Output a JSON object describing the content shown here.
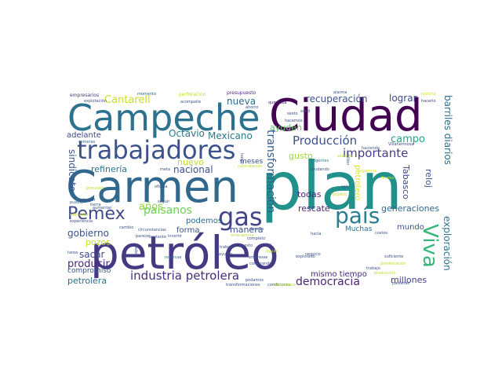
{
  "words": [
    {
      "text": "petróleo",
      "color": "#443983"
    },
    {
      "text": "plan",
      "color": "#21918c"
    },
    {
      "text": "Carmen",
      "color": "#31688e"
    },
    {
      "text": "Ciudad",
      "color": "#440154"
    },
    {
      "text": "Campeche",
      "color": "#2c728e"
    },
    {
      "text": "trabajadores",
      "color": "#3b528b"
    },
    {
      "text": "Pemex",
      "color": "#3e4a89"
    },
    {
      "text": "gas",
      "color": "#414487"
    },
    {
      "text": "país",
      "color": "#287d8e"
    },
    {
      "text": "Viva",
      "color": "#35b779"
    },
    {
      "text": "industria petrolera",
      "color": "#472d7b"
    },
    {
      "text": "paisanos",
      "color": "#6ece58"
    },
    {
      "text": "transformación",
      "color": "#365c8d"
    },
    {
      "text": "Producción",
      "color": "#3b528b"
    },
    {
      "text": "importante",
      "color": "#433e85"
    },
    {
      "text": "democracia",
      "color": "#482475"
    },
    {
      "text": "Cantarell",
      "color": "#cae11f"
    },
    {
      "text": "Octavio",
      "color": "#2a788e"
    },
    {
      "text": "Mexicano",
      "color": "#2a788e"
    },
    {
      "text": "nueva",
      "color": "#31688e"
    },
    {
      "text": "recuperación",
      "color": "#3b528b"
    },
    {
      "text": "lograr",
      "color": "#3e4a89"
    },
    {
      "text": "campo",
      "color": "#22a884"
    },
    {
      "text": "barriles diarios",
      "color": "#2e6e8e"
    },
    {
      "text": "adelante",
      "color": "#3e4989"
    },
    {
      "text": "nuevo",
      "color": "#b5de2b"
    },
    {
      "text": "nacional",
      "color": "#3b528b"
    },
    {
      "text": "refinería",
      "color": "#2c728e"
    },
    {
      "text": "sindicato",
      "color": "#3a548c"
    },
    {
      "text": "gobierno",
      "color": "#3b528b"
    },
    {
      "text": "años",
      "color": "#8fd744"
    },
    {
      "text": "pozos",
      "color": "#c2df23"
    },
    {
      "text": "sacar",
      "color": "#3e4a89"
    },
    {
      "text": "producir",
      "color": "#482878"
    },
    {
      "text": "compromiso",
      "color": "#3b528b"
    },
    {
      "text": "petrolera",
      "color": "#2c728e"
    },
    {
      "text": "forma",
      "color": "#3b528b"
    },
    {
      "text": "podemos",
      "color": "#31688e"
    },
    {
      "text": "manera",
      "color": "#3b528b"
    },
    {
      "text": "rescate",
      "color": "#482878"
    },
    {
      "text": "todas",
      "color": "#482475"
    },
    {
      "text": "generaciones",
      "color": "#31688e"
    },
    {
      "text": "mundo",
      "color": "#3b528b"
    },
    {
      "text": "exploración",
      "color": "#2c728e"
    },
    {
      "text": "millones",
      "color": "#433e85"
    },
    {
      "text": "mismo tiempo",
      "color": "#482878"
    },
    {
      "text": "Tabasco",
      "color": "#3e4989"
    },
    {
      "text": "reloj",
      "color": "#3b528b"
    },
    {
      "text": "ayuden",
      "color": "#5ec962"
    },
    {
      "text": "gusto",
      "color": "#9fda3a"
    },
    {
      "text": "petrolero",
      "color": "#dde318"
    },
    {
      "text": "meses",
      "color": "#3b528b"
    },
    {
      "text": "Muchas",
      "color": "#2e6e8e"
    },
    {
      "text": "empresarios",
      "color": "#443983"
    },
    {
      "text": "momento",
      "color": "#31688e"
    },
    {
      "text": "perforación",
      "color": "#bddf26"
    },
    {
      "text": "presupuesto",
      "color": "#472c7a"
    },
    {
      "text": "alarma",
      "color": "#3b528b"
    },
    {
      "text": "historia",
      "color": "#d8e219"
    },
    {
      "text": "hacerlo",
      "color": "#433e85"
    },
    {
      "text": "explotación",
      "color": "#3b528b"
    },
    {
      "text": "acompañe",
      "color": "#3b528b"
    },
    {
      "text": "quemaba",
      "color": "#482475"
    },
    {
      "text": "sexenio",
      "color": "#b8de29"
    },
    {
      "text": "Villahermosa",
      "color": "#3b528b"
    },
    {
      "text": "someras",
      "color": "#31688e"
    },
    {
      "text": "haciendo",
      "color": "#3b528b"
    },
    {
      "text": "finales",
      "color": "#bddf26"
    },
    {
      "text": "logramos",
      "color": "#dde318"
    },
    {
      "text": "aumentar",
      "color": "#3b528b"
    },
    {
      "text": "seguir",
      "color": "#3b528b"
    },
    {
      "text": "oficina",
      "color": "#3b528b"
    },
    {
      "text": "proceder",
      "color": "#bddf26"
    },
    {
      "text": "entregar",
      "color": "#3b528b"
    },
    {
      "text": "tierra",
      "color": "#3b528b"
    },
    {
      "text": "pueblo",
      "color": "#31688e"
    },
    {
      "text": "refinación",
      "color": "#bddf26"
    },
    {
      "text": "experiencia",
      "color": "#3b528b"
    },
    {
      "text": "circunstancias",
      "color": "#3b528b"
    },
    {
      "text": "bastante",
      "color": "#3b528b"
    },
    {
      "text": "cambio",
      "color": "#3b528b"
    },
    {
      "text": "parece",
      "color": "#3b528b"
    },
    {
      "text": "invertir",
      "color": "#3b528b"
    },
    {
      "text": "reservas",
      "color": "#31688e"
    },
    {
      "text": "ayudar",
      "color": "#3b528b"
    },
    {
      "text": "trabaja",
      "color": "#3b528b"
    },
    {
      "text": "empresas",
      "color": "#3b528b"
    },
    {
      "text": "comprando",
      "color": "#3b528b"
    },
    {
      "text": "ahorro",
      "color": "#3b528b"
    },
    {
      "text": "hacemos",
      "color": "#3b528b"
    },
    {
      "text": "sexto",
      "color": "#3b528b"
    },
    {
      "text": "sond",
      "color": "#3b528b"
    },
    {
      "text": "desafío",
      "color": "#3b528b"
    },
    {
      "text": "completo",
      "color": "#3b528b"
    },
    {
      "text": "hacia",
      "color": "#3b528b"
    },
    {
      "text": "costos",
      "color": "#3b528b"
    },
    {
      "text": "suficiente",
      "color": "#3b528b"
    },
    {
      "text": "presentación",
      "color": "#bddf26"
    },
    {
      "text": "negocio",
      "color": "#3b528b"
    },
    {
      "text": "paisanas",
      "color": "#3b528b"
    },
    {
      "text": "condiciones",
      "color": "#3b528b"
    },
    {
      "text": "transformaciones",
      "color": "#3b528b"
    },
    {
      "text": "producción",
      "color": "#bddf26"
    },
    {
      "text": "contratación",
      "color": "#bddf26"
    },
    {
      "text": "emergencia",
      "color": "#bddf26"
    },
    {
      "text": "ayudando",
      "color": "#3b528b"
    },
    {
      "text": "dirigentes",
      "color": "#2a788e"
    },
    {
      "text": "público",
      "color": "#bddf26"
    },
    {
      "text": "tarea",
      "color": "#3b528b"
    },
    {
      "text": "cada",
      "color": "#3b528b"
    },
    {
      "text": "meta",
      "color": "#3b528b"
    },
    {
      "text": "seis",
      "color": "#3b528b"
    },
    {
      "text": "puesto",
      "color": "#3b528b"
    },
    {
      "text": "luego",
      "color": "#3b528b"
    },
    {
      "text": "explotado",
      "color": "#3b528b"
    },
    {
      "text": "millón",
      "color": "#3b528b"
    },
    {
      "text": "dar",
      "color": "#3b528b"
    },
    {
      "text": "aguas",
      "color": "#bddf26"
    },
    {
      "text": "podamos",
      "color": "#3b528b"
    },
    {
      "text": "ciudadanos",
      "color": "#bddf26"
    },
    {
      "text": "trabajo",
      "color": "#3b528b"
    }
  ]
}
